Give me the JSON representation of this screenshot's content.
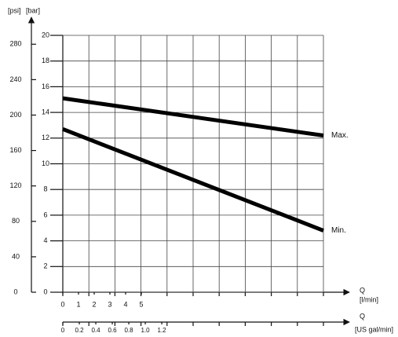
{
  "chart_data": {
    "type": "line",
    "y_label": "[bar]",
    "y2_label": "[psi]",
    "x_label": "Q",
    "x_unit": "[l/min]",
    "x2_label": "Q",
    "x2_unit": "[US gal/min]",
    "x": [
      0,
      16.6
    ],
    "series": [
      {
        "name": "Max.",
        "color": "#000000",
        "values": [
          15.1,
          12.2
        ]
      },
      {
        "name": "Min.",
        "color": "#000000",
        "values": [
          12.7,
          4.8
        ]
      }
    ],
    "xlim": [
      0,
      16.6
    ],
    "xticks": [
      0,
      1,
      2,
      3,
      4,
      5
    ],
    "x2lim": [
      0,
      3.16
    ],
    "x2ticks": [
      0,
      0.2,
      0.4,
      0.6,
      0.8,
      {
        "value": 1,
        "label": "1.0"
      },
      1.2
    ],
    "ylim": [
      0,
      20
    ],
    "yticks": [
      0,
      2,
      4,
      6,
      8,
      10,
      12,
      14,
      16,
      18,
      20
    ],
    "y2lim": [
      0,
      290
    ],
    "y2ticks": [
      0,
      40,
      80,
      120,
      160,
      200,
      240,
      280
    ],
    "grid": true
  }
}
